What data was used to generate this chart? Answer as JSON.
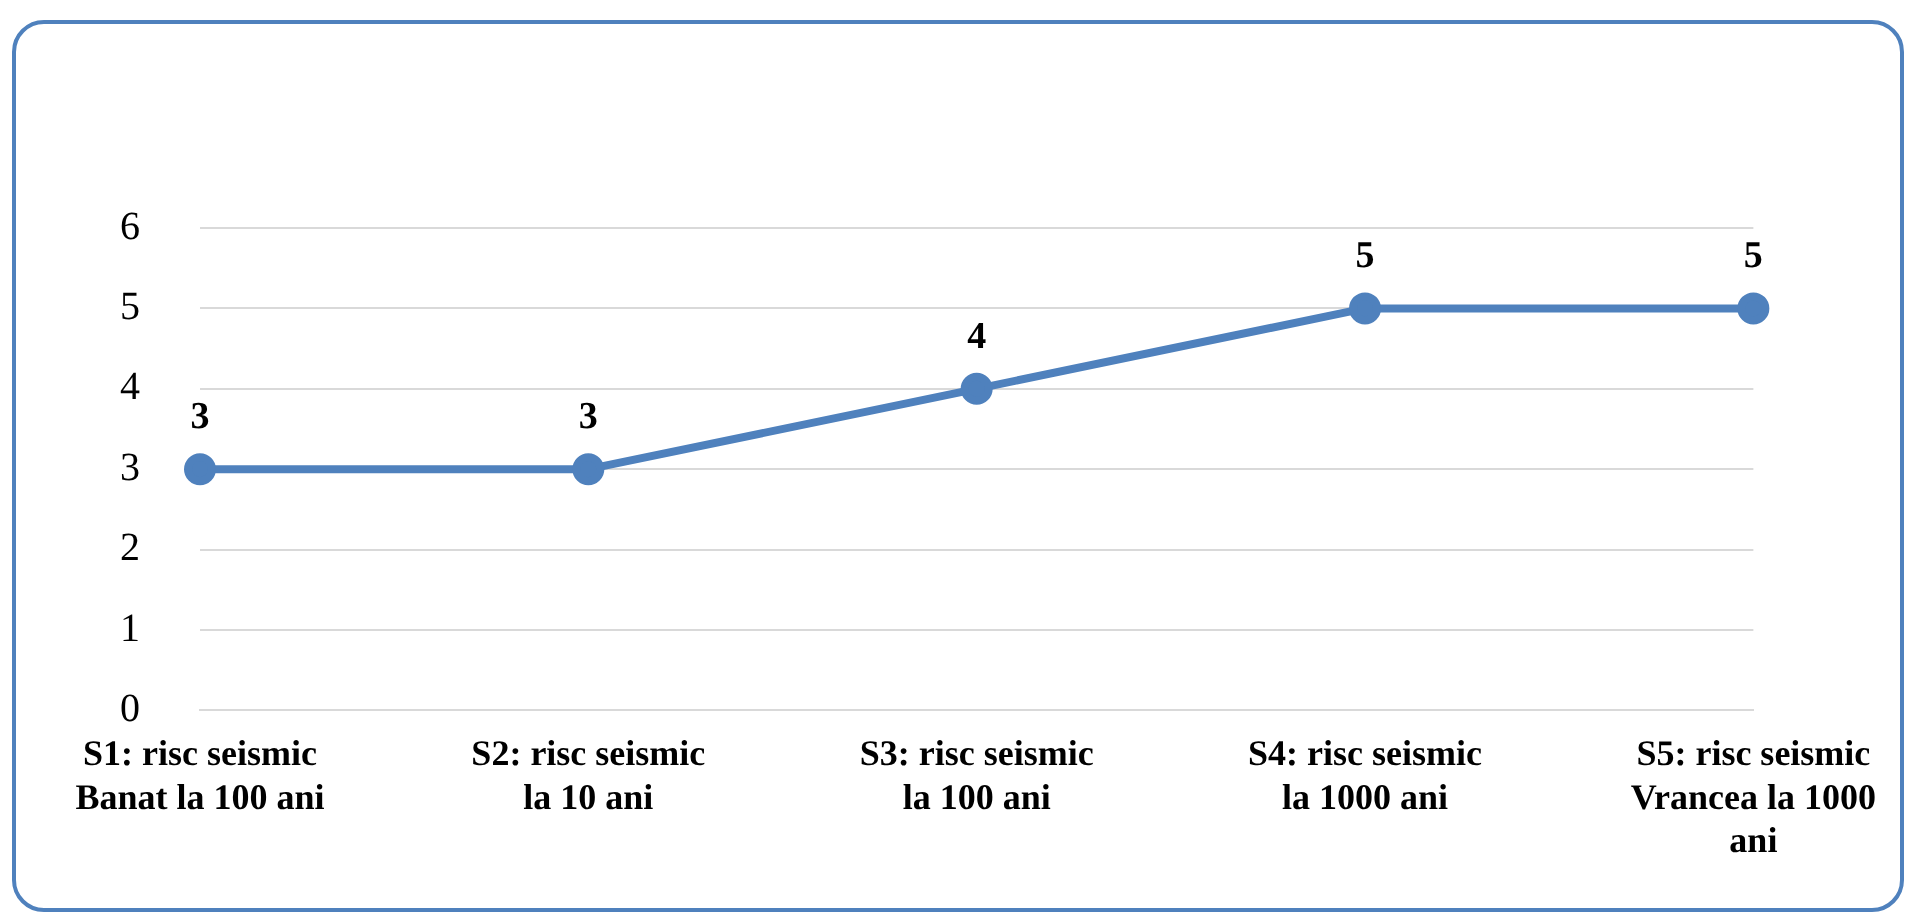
{
  "chart_data": {
    "type": "line",
    "categories": [
      "S1: risc seismic Banat la 100 ani",
      "S2: risc seismic la 10 ani",
      "S3: risc seismic la 100 ani",
      "S4: risc seismic la 1000 ani",
      "S5: risc seismic Vrancea la 1000 ani"
    ],
    "values": [
      3,
      3,
      4,
      5,
      5
    ],
    "color": "#4f81bd",
    "ylim": [
      0,
      6
    ],
    "yticks": [
      0,
      1,
      2,
      3,
      4,
      5,
      6
    ],
    "grid": "y",
    "marker": "circle",
    "line_style": "solid",
    "data_labels": true
  }
}
